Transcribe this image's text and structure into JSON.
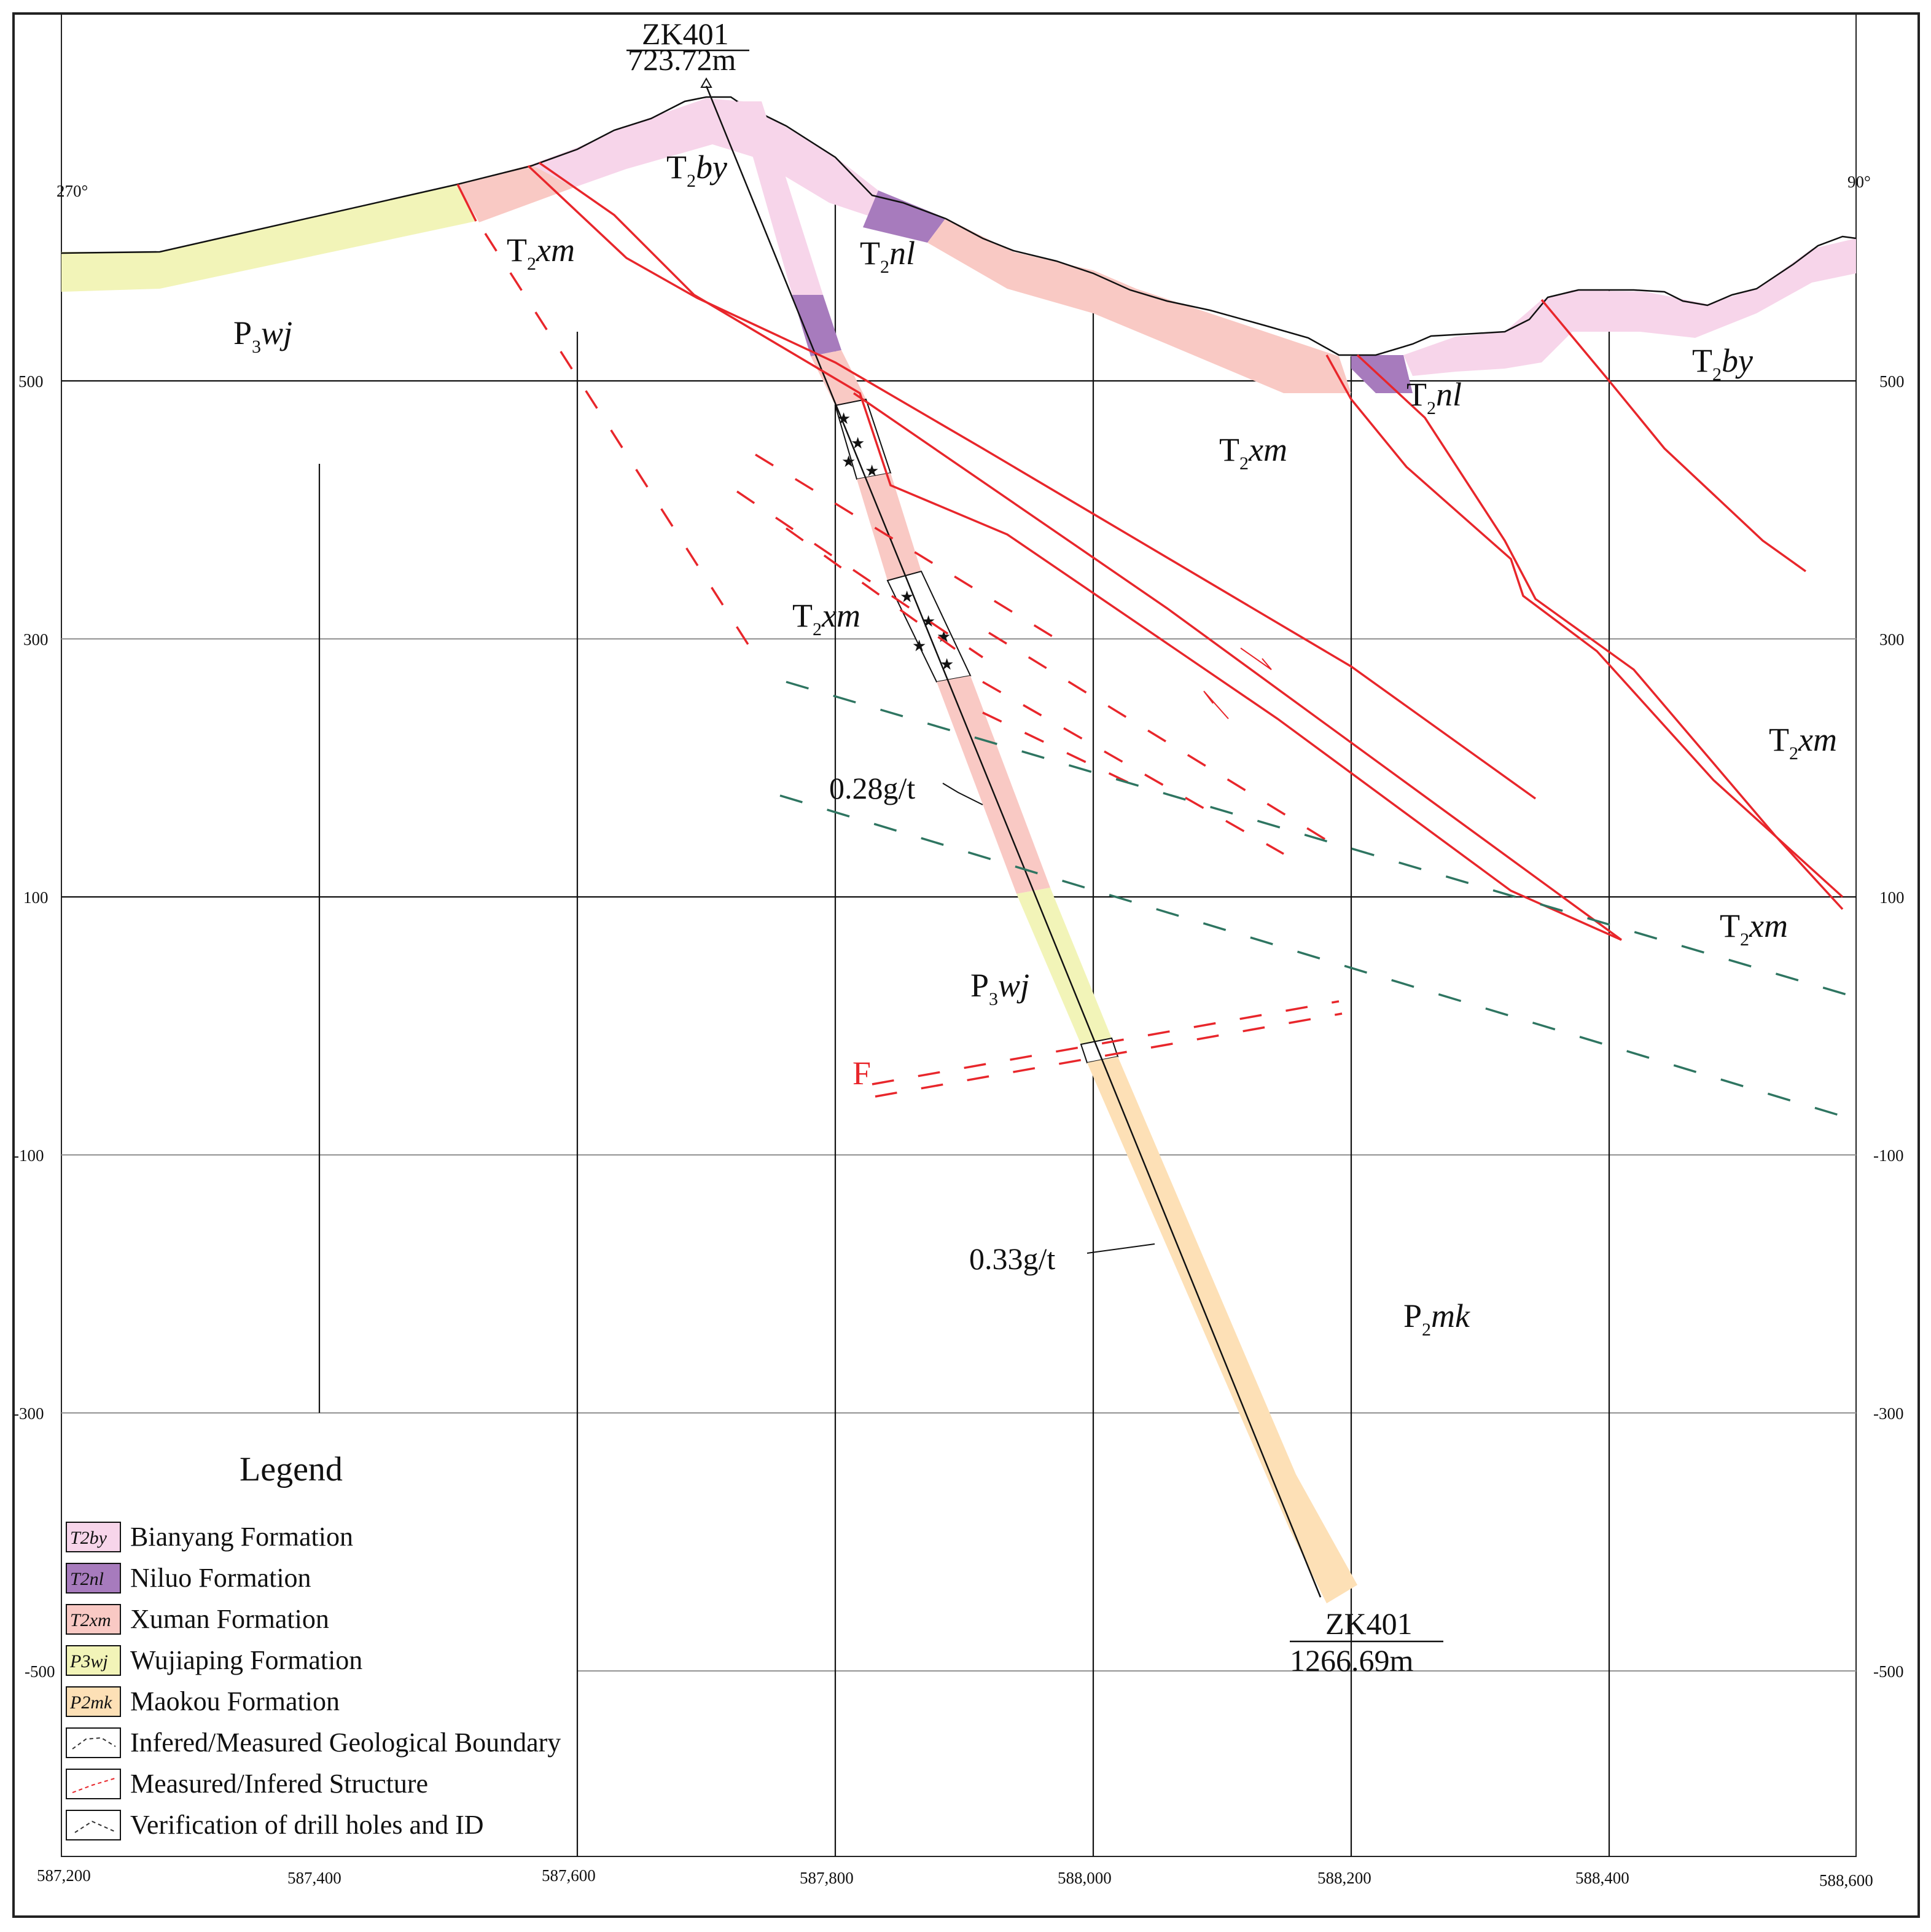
{
  "section": {
    "left_bearing": "270°",
    "right_bearing": "90°"
  },
  "axes": {
    "x_ticks": [
      "587,200",
      "587,400",
      "587,600",
      "587,800",
      "588,000",
      "588,200",
      "588,400",
      "588,600"
    ],
    "y_ticks": [
      "500",
      "300",
      "100",
      "-100",
      "-300",
      "-500"
    ]
  },
  "drillhole": {
    "id_top": "ZK401",
    "collar_elevation": "723.72m",
    "id_bottom": "ZK401",
    "depth": "1266.69m",
    "grades": [
      "0.28g/t",
      "0.33g/t"
    ]
  },
  "fault_label": "F",
  "formation_labels": [
    {
      "base": "T",
      "sub": "2",
      "code": "by"
    },
    {
      "base": "T",
      "sub": "2",
      "code": "xm"
    },
    {
      "base": "T",
      "sub": "2",
      "code": "nl"
    },
    {
      "base": "P",
      "sub": "3",
      "code": "wj"
    },
    {
      "base": "T",
      "sub": "2",
      "code": "by"
    },
    {
      "base": "T",
      "sub": "2",
      "code": "nl"
    },
    {
      "base": "T",
      "sub": "2",
      "code": "xm"
    },
    {
      "base": "T",
      "sub": "2",
      "code": "xm"
    },
    {
      "base": "T",
      "sub": "2",
      "code": "xm"
    },
    {
      "base": "T",
      "sub": "2",
      "code": "xm"
    },
    {
      "base": "P",
      "sub": "3",
      "code": "wj"
    },
    {
      "base": "P",
      "sub": "2",
      "code": "mk"
    }
  ],
  "legend": {
    "title": "Legend",
    "items": [
      {
        "swatch": "T2by",
        "label": "Bianyang Formation",
        "color": "#f7d5ea"
      },
      {
        "swatch": "T2nl",
        "label": "Niluo Formation",
        "color": "#a77bbd"
      },
      {
        "swatch": "T2xm",
        "label": "Xuman Formation",
        "color": "#f9c9c4"
      },
      {
        "swatch": "P3wj",
        "label": "Wujiaping Formation",
        "color": "#f2f4b8"
      },
      {
        "swatch": "P2mk",
        "label": "Maokou Formation",
        "color": "#fde0b6"
      },
      {
        "swatch": "",
        "label": "Infered/Measured Geological Boundary",
        "color": "#ffffff"
      },
      {
        "swatch": "",
        "label": "Measured/Infered Structure",
        "color": "#ffffff"
      },
      {
        "swatch": "",
        "label": "Verification of drill holes and ID",
        "color": "#ffffff"
      }
    ]
  },
  "colors": {
    "bianyang": "#f7d5ea",
    "niluo": "#a77bbd",
    "xuman": "#f9c9c4",
    "wujiaping": "#f2f4b8",
    "maokou": "#fde0b6",
    "structure": "#e8262b",
    "boundary": "#2e7561",
    "grid": "#111111"
  }
}
